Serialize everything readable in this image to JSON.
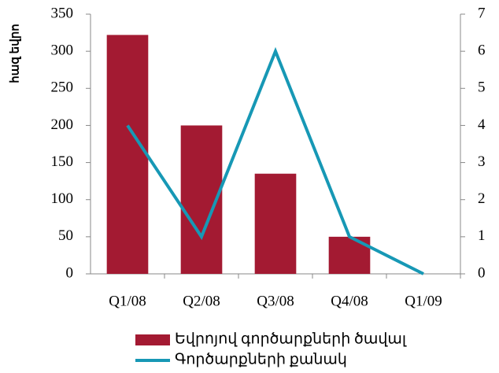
{
  "chart_data": {
    "type": "combo",
    "y_label": "հազ եվրո",
    "categories": [
      "Q1/08",
      "Q2/08",
      "Q3/08",
      "Q4/08",
      "Q1/09"
    ],
    "series": [
      {
        "name": "Եվրոյով գործարքների ծավալ",
        "type": "bar",
        "color": "#a31a32",
        "values": [
          322,
          200,
          135,
          50,
          0
        ]
      },
      {
        "name": "Գործարքների քանակ",
        "type": "line",
        "axis": "y2",
        "color": "#1798b5",
        "values": [
          4,
          1,
          6,
          1,
          0
        ]
      }
    ],
    "ylim": [
      0,
      350
    ],
    "yticks": [
      0,
      50,
      100,
      150,
      200,
      250,
      300,
      350
    ],
    "y2lim": [
      0,
      7
    ],
    "y2ticks": [
      0,
      1,
      2,
      3,
      4,
      5,
      6,
      7
    ],
    "grid": false,
    "legend": "bottom"
  }
}
